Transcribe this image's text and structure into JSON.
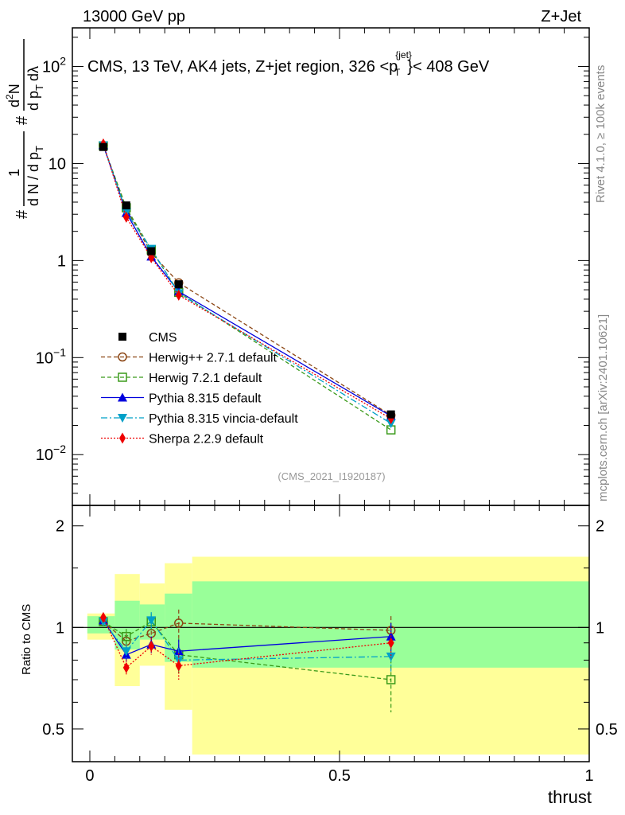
{
  "header": {
    "left": "13000 GeV pp",
    "right": "Z+Jet"
  },
  "side_labels": {
    "rivet": "Rivet 4.1.0, ≥ 100k events",
    "mcplots": "mcplots.cern.ch [arXiv:2401.10621]"
  },
  "main_title": {
    "prefix": "CMS, 13 TeV, AK4 jets, Z+jet region, 326 <p",
    "sup": "{jet}",
    "sub": "T",
    "suffix": "}< 408 GeV"
  },
  "y_axis_main": {
    "label": "# 1/(dN/dp_T) # d^2N/(dp_T dλ)",
    "t1": "#",
    "t2": "1",
    "t3": "d N / d p",
    "t4": "T",
    "t5": "#",
    "t6": "d",
    "t7": "2",
    "t8": "N",
    "t9": "d p",
    "t10": "T",
    "t11": "dλ"
  },
  "watermark": "(CMS_2021_I1920187)",
  "ratio_axis": {
    "ylabel": "Ratio to CMS",
    "ticks": [
      "2",
      "1",
      "0.5"
    ]
  },
  "x_axis": {
    "label": "thrust",
    "ticks": [
      "0",
      "0.5",
      "1"
    ]
  },
  "legend": [
    {
      "name": "CMS",
      "color": "#000000",
      "marker": "square-filled",
      "dash": "none"
    },
    {
      "name": "Herwig++ 2.7.1 default",
      "color": "#8b4513",
      "marker": "circle-open",
      "dash": "5,3"
    },
    {
      "name": "Herwig 7.2.1 default",
      "color": "#3a9a1a",
      "marker": "square-open",
      "dash": "5,3"
    },
    {
      "name": "Pythia 8.315 default",
      "color": "#0000dd",
      "marker": "triangle-up",
      "dash": "none"
    },
    {
      "name": "Pythia 8.315 vincia-default",
      "color": "#00a0c8",
      "marker": "triangle-down",
      "dash": "8,3,2,3"
    },
    {
      "name": "Sherpa 2.2.9 default",
      "color": "#ee0000",
      "marker": "diamond",
      "dash": "2,2"
    }
  ],
  "chart_data": {
    "type": "line",
    "title": "CMS, 13 TeV, AK4 jets, Z+jet region, 326 < pT jet < 408 GeV",
    "xlabel": "thrust",
    "ylabel": "1/(dN/dpT) d2N/(dpT dλ)",
    "x_range": [
      -0.035,
      1.0
    ],
    "y_range_main": [
      0.003,
      250
    ],
    "y_scale_main": "log",
    "y_range_ratio": [
      0.4,
      2.3
    ],
    "y_scale_ratio": "log",
    "main_y_ticks": [
      {
        "value": 0.01,
        "base": "10",
        "exp": "−2"
      },
      {
        "value": 0.1,
        "base": "10",
        "exp": "−1"
      },
      {
        "value": 1,
        "base": "1",
        "exp": ""
      },
      {
        "value": 10,
        "base": "10",
        "exp": ""
      },
      {
        "value": 100,
        "base": "10",
        "exp": "2"
      }
    ],
    "bins": [
      {
        "lo": -0.005,
        "hi": 0.05
      },
      {
        "lo": 0.05,
        "hi": 0.1
      },
      {
        "lo": 0.1,
        "hi": 0.15
      },
      {
        "lo": 0.15,
        "hi": 0.205
      },
      {
        "lo": 0.205,
        "hi": 1.0
      }
    ],
    "x": [
      0.027,
      0.073,
      0.123,
      0.178,
      0.603
    ],
    "data": {
      "name": "CMS",
      "values": [
        14.8,
        3.7,
        1.25,
        0.57,
        0.026
      ]
    },
    "band_inner": [
      [
        0.96,
        1.08
      ],
      [
        0.86,
        1.2
      ],
      [
        0.92,
        1.17
      ],
      [
        0.79,
        1.26
      ],
      [
        0.76,
        1.37
      ]
    ],
    "band_outer": [
      [
        0.92,
        1.1
      ],
      [
        0.67,
        1.44
      ],
      [
        0.77,
        1.35
      ],
      [
        0.57,
        1.55
      ],
      [
        0.42,
        1.62
      ]
    ],
    "series": [
      {
        "name": "Herwig++ 2.7.1 default",
        "values": [
          15.4,
          3.4,
          1.2,
          0.59,
          0.0255
        ],
        "ratio": [
          1.04,
          0.91,
          0.96,
          1.03,
          0.98
        ],
        "ratio_err": [
          0.02,
          0.05,
          0.06,
          0.1,
          0.1
        ]
      },
      {
        "name": "Herwig 7.2.1 default",
        "values": [
          15.2,
          3.5,
          1.29,
          0.47,
          0.018
        ],
        "ratio": [
          1.04,
          0.94,
          1.04,
          0.83,
          0.7
        ],
        "ratio_err": [
          0.02,
          0.05,
          0.06,
          0.1,
          0.14
        ]
      },
      {
        "name": "Pythia 8.315 default",
        "values": [
          15.5,
          3.1,
          1.1,
          0.48,
          0.025
        ],
        "ratio": [
          1.05,
          0.83,
          0.89,
          0.85,
          0.94
        ],
        "ratio_err": [
          0.02,
          0.04,
          0.05,
          0.07,
          0.09
        ]
      },
      {
        "name": "Pythia 8.315 vincia-default",
        "values": [
          15.4,
          3.15,
          1.32,
          0.46,
          0.021
        ],
        "ratio": [
          1.04,
          0.85,
          1.05,
          0.8,
          0.82
        ],
        "ratio_err": [
          0.02,
          0.04,
          0.06,
          0.07,
          0.08
        ]
      },
      {
        "name": "Sherpa 2.2.9 default",
        "values": [
          15.9,
          2.8,
          1.07,
          0.44,
          0.0235
        ],
        "ratio": [
          1.07,
          0.76,
          0.88,
          0.77,
          0.9
        ],
        "ratio_err": [
          0.02,
          0.04,
          0.05,
          0.07,
          0.09
        ]
      }
    ]
  }
}
